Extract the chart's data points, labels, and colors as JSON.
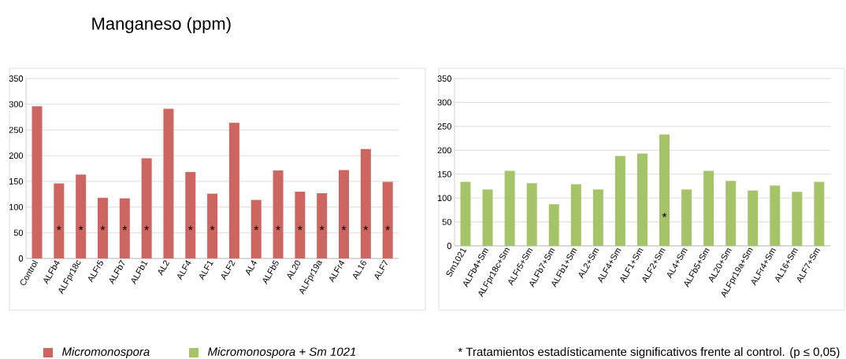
{
  "chart_data": [
    {
      "type": "bar",
      "title": "Manganeso (ppm)",
      "categories": [
        "Control",
        "ALFb4",
        "ALFpr18c",
        "ALFr5",
        "ALFb7",
        "ALFb1",
        "AL2",
        "ALF4",
        "ALF1",
        "ALF2",
        "AL4",
        "ALFb5",
        "AL20",
        "ALFpr19a",
        "ALFr4",
        "AL16",
        "ALF7"
      ],
      "series": [
        {
          "name": "Micromonospora",
          "color": "#cd6660",
          "values": [
            296,
            146,
            163,
            118,
            117,
            195,
            291,
            168,
            126,
            264,
            114,
            171,
            130,
            127,
            172,
            213,
            149
          ]
        }
      ],
      "ylim": [
        0,
        350
      ],
      "yticks": [
        0,
        50,
        100,
        150,
        200,
        250,
        300,
        350
      ],
      "grid": "y",
      "legend": "bottom",
      "annotations": [
        {
          "text": "*",
          "x": "ALFb4",
          "y": 55
        },
        {
          "text": "*",
          "x": "ALFpr18c",
          "y": 55
        },
        {
          "text": "*",
          "x": "ALFr5",
          "y": 55
        },
        {
          "text": "*",
          "x": "ALFb7",
          "y": 55
        },
        {
          "text": "*",
          "x": "ALFb1",
          "y": 55
        },
        {
          "text": "*",
          "x": "ALF4",
          "y": 55
        },
        {
          "text": "*",
          "x": "ALF1",
          "y": 55
        },
        {
          "text": "*",
          "x": "AL4",
          "y": 55
        },
        {
          "text": "*",
          "x": "ALFb5",
          "y": 55
        },
        {
          "text": "*",
          "x": "AL20",
          "y": 55
        },
        {
          "text": "*",
          "x": "ALFpr19a",
          "y": 55
        },
        {
          "text": "*",
          "x": "ALFr4",
          "y": 55
        },
        {
          "text": "*",
          "x": "AL16",
          "y": 55
        },
        {
          "text": "*",
          "x": "ALF7",
          "y": 55
        }
      ]
    },
    {
      "type": "bar",
      "categories": [
        "Sm1021",
        "ALFb4+Sm",
        "ALFpr18c+Sm",
        "ALFr5+Sm",
        "ALFb7+Sm",
        "ALFb1+Sm",
        "AL2+Sm",
        "ALF4+Sm",
        "ALF1+Sm",
        "ALF2+Sm",
        "AL4+Sm",
        "ALFb5+Sm",
        "AL20+Sm",
        "ALFpr19a+Sm",
        "ALFr4+Sm",
        "AL16+Sm",
        "ALF7+Sm"
      ],
      "series": [
        {
          "name": "Micromonospora + Sm 1021",
          "color": "#a5c468",
          "values": [
            134,
            118,
            157,
            131,
            87,
            129,
            118,
            188,
            193,
            233,
            118,
            157,
            136,
            116,
            126,
            113,
            134
          ]
        }
      ],
      "ylim": [
        0,
        350
      ],
      "yticks": [
        0,
        50,
        100,
        150,
        200,
        250,
        300,
        350
      ],
      "grid": "y",
      "legend": "bottom",
      "annotations": [
        {
          "text": "*",
          "x": "ALF2+Sm",
          "y": 60
        },
        "* Tratamientos estadísticamente significativos frente al control. (p ≤ 0,05)"
      ]
    }
  ]
}
